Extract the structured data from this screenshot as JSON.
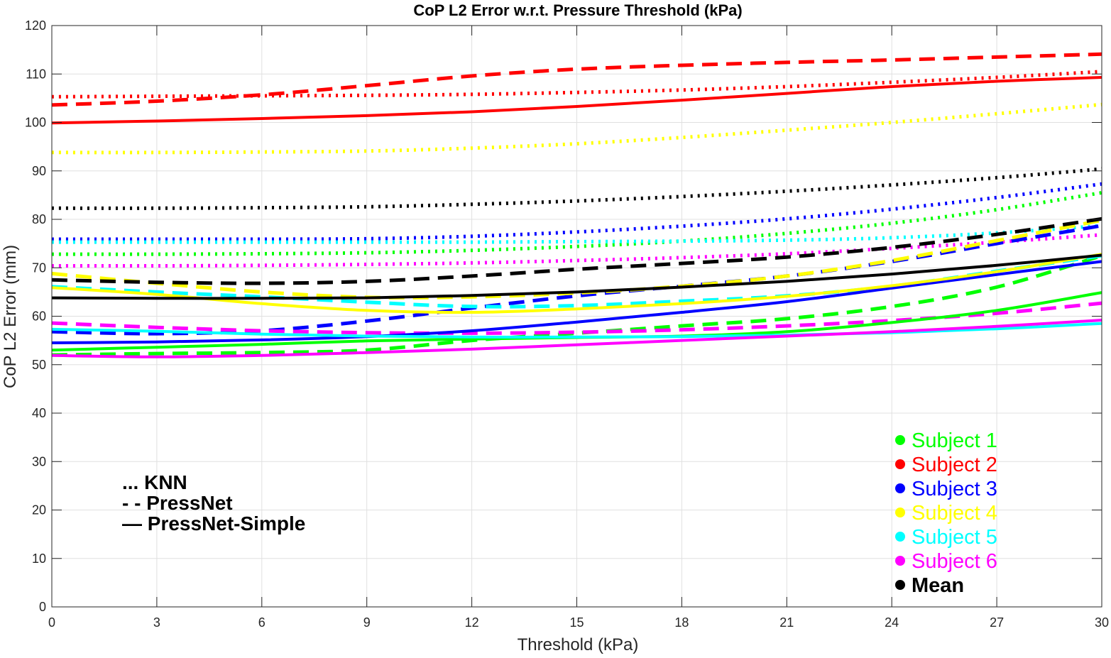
{
  "chart_data": {
    "type": "line",
    "title": "CoP L2 Error w.r.t. Pressure Threshold (kPa)",
    "xlabel": "Threshold (kPa)",
    "ylabel": "CoP L2 Error (mm)",
    "xlim": [
      0,
      30
    ],
    "ylim": [
      0,
      120
    ],
    "xticks": [
      0,
      3,
      6,
      9,
      12,
      15,
      18,
      21,
      24,
      27,
      30
    ],
    "yticks": [
      0,
      10,
      20,
      30,
      40,
      50,
      60,
      70,
      80,
      90,
      100,
      110,
      120
    ],
    "grid": true,
    "x": [
      0,
      3,
      6,
      9,
      12,
      15,
      18,
      21,
      24,
      27,
      30
    ],
    "method_legend": {
      "placement": "lower-left",
      "entries": [
        {
          "style": "dotted",
          "marker": "...",
          "label": "KNN"
        },
        {
          "style": "dashed",
          "marker": "- -",
          "label": "PressNet"
        },
        {
          "style": "solid",
          "marker": "—",
          "label": "PressNet-Simple"
        }
      ]
    },
    "subject_legend": {
      "placement": "lower-right",
      "entries": [
        {
          "label": "Subject 1",
          "color": "#00ff00"
        },
        {
          "label": "Subject 2",
          "color": "#ff0000"
        },
        {
          "label": "Subject 3",
          "color": "#0000ff"
        },
        {
          "label": "Subject 4",
          "color": "#ffff00"
        },
        {
          "label": "Subject 5",
          "color": "#00ffff"
        },
        {
          "label": "Subject 6",
          "color": "#ff00ff"
        },
        {
          "label": "Mean",
          "color": "#000000"
        }
      ]
    },
    "series": [
      {
        "subject": "Subject 1",
        "method": "KNN",
        "color": "#00ff00",
        "style": "dotted",
        "values": [
          72.8,
          72.8,
          72.9,
          73.1,
          73.6,
          74.4,
          75.5,
          77.1,
          79.2,
          82.0,
          85.5
        ]
      },
      {
        "subject": "Subject 1",
        "method": "PressNet",
        "color": "#00ff00",
        "style": "dashed",
        "values": [
          52.0,
          52.3,
          52.5,
          53.0,
          55.0,
          56.5,
          58.0,
          59.5,
          62.0,
          66.0,
          72.5
        ]
      },
      {
        "subject": "Subject 1",
        "method": "PressNet-Simple",
        "color": "#00ff00",
        "style": "solid",
        "values": [
          53.0,
          53.6,
          54.2,
          54.9,
          55.3,
          55.6,
          55.9,
          56.8,
          58.7,
          61.2,
          64.9
        ]
      },
      {
        "subject": "Subject 2",
        "method": "KNN",
        "color": "#ff0000",
        "style": "dotted",
        "values": [
          105.3,
          105.4,
          105.5,
          105.6,
          105.8,
          106.2,
          106.7,
          107.4,
          108.3,
          109.3,
          110.5
        ]
      },
      {
        "subject": "Subject 2",
        "method": "PressNet",
        "color": "#ff0000",
        "style": "dashed",
        "values": [
          103.6,
          104.4,
          105.7,
          107.6,
          109.6,
          111.0,
          111.8,
          112.4,
          112.9,
          113.5,
          114.1
        ]
      },
      {
        "subject": "Subject 2",
        "method": "PressNet-Simple",
        "color": "#ff0000",
        "style": "solid",
        "values": [
          99.9,
          100.3,
          100.8,
          101.4,
          102.2,
          103.3,
          104.6,
          106.0,
          107.4,
          108.5,
          109.3
        ]
      },
      {
        "subject": "Subject 3",
        "method": "KNN",
        "color": "#0000ff",
        "style": "dotted",
        "values": [
          75.9,
          75.9,
          75.9,
          76.0,
          76.5,
          77.4,
          78.6,
          80.1,
          82.1,
          84.5,
          87.3
        ]
      },
      {
        "subject": "Subject 3",
        "method": "PressNet",
        "color": "#0000ff",
        "style": "dashed",
        "values": [
          56.8,
          56.4,
          57.0,
          59.0,
          61.7,
          64.2,
          66.2,
          68.3,
          71.3,
          75.0,
          78.7
        ]
      },
      {
        "subject": "Subject 3",
        "method": "PressNet-Simple",
        "color": "#0000ff",
        "style": "solid",
        "values": [
          54.5,
          54.7,
          55.1,
          55.8,
          57.0,
          58.8,
          60.8,
          63.0,
          65.8,
          68.6,
          71.3
        ]
      },
      {
        "subject": "Subject 4",
        "method": "KNN",
        "color": "#ffff00",
        "style": "dotted",
        "values": [
          93.8,
          93.8,
          93.9,
          94.1,
          94.7,
          95.6,
          96.9,
          98.4,
          100.0,
          101.8,
          103.7
        ]
      },
      {
        "subject": "Subject 4",
        "method": "PressNet",
        "color": "#ffff00",
        "style": "dashed",
        "values": [
          68.8,
          66.8,
          65.0,
          63.9,
          64.0,
          64.8,
          66.2,
          68.3,
          71.5,
          75.6,
          79.8
        ]
      },
      {
        "subject": "Subject 4",
        "method": "PressNet-Simple",
        "color": "#ffff00",
        "style": "solid",
        "values": [
          65.9,
          64.5,
          62.6,
          61.2,
          60.8,
          61.5,
          62.6,
          64.1,
          66.3,
          69.2,
          72.8
        ]
      },
      {
        "subject": "Subject 5",
        "method": "KNN",
        "color": "#00ffff",
        "style": "dotted",
        "values": [
          75.3,
          75.3,
          75.3,
          75.3,
          75.3,
          75.4,
          75.5,
          75.7,
          76.2,
          77.2,
          78.7
        ]
      },
      {
        "subject": "Subject 5",
        "method": "PressNet",
        "color": "#00ffff",
        "style": "dashed",
        "values": [
          66.1,
          65.0,
          64.0,
          62.9,
          62.0,
          62.2,
          63.1,
          64.2,
          66.2,
          69.3,
          72.5
        ]
      },
      {
        "subject": "Subject 5",
        "method": "PressNet-Simple",
        "color": "#00ffff",
        "style": "solid",
        "values": [
          57.3,
          56.9,
          56.3,
          55.9,
          55.7,
          55.7,
          55.8,
          56.1,
          56.6,
          57.4,
          58.5
        ]
      },
      {
        "subject": "Subject 6",
        "method": "KNN",
        "color": "#ff00ff",
        "style": "dotted",
        "values": [
          70.4,
          70.4,
          70.5,
          70.7,
          71.0,
          71.5,
          72.1,
          72.9,
          74.0,
          75.3,
          76.8
        ]
      },
      {
        "subject": "Subject 6",
        "method": "PressNet",
        "color": "#ff00ff",
        "style": "dashed",
        "values": [
          58.6,
          57.7,
          57.0,
          56.6,
          56.5,
          56.7,
          57.2,
          58.0,
          59.1,
          60.6,
          62.7
        ]
      },
      {
        "subject": "Subject 6",
        "method": "PressNet-Simple",
        "color": "#ff00ff",
        "style": "solid",
        "values": [
          51.9,
          51.6,
          51.9,
          52.5,
          53.2,
          54.1,
          55.0,
          55.9,
          56.8,
          57.9,
          59.2
        ]
      },
      {
        "subject": "Mean",
        "method": "KNN",
        "color": "#000000",
        "style": "dotted",
        "values": [
          82.3,
          82.3,
          82.4,
          82.6,
          83.1,
          83.8,
          84.7,
          85.8,
          87.1,
          88.6,
          90.4
        ]
      },
      {
        "subject": "Mean",
        "method": "PressNet",
        "color": "#000000",
        "style": "dashed",
        "values": [
          67.5,
          67.0,
          66.8,
          67.2,
          68.3,
          69.7,
          70.9,
          72.2,
          74.2,
          76.9,
          80.1
        ]
      },
      {
        "subject": "Mean",
        "method": "PressNet-Simple",
        "color": "#000000",
        "style": "solid",
        "values": [
          63.8,
          63.7,
          63.7,
          63.8,
          64.3,
          65.0,
          66.0,
          67.2,
          68.7,
          70.5,
          72.6
        ]
      }
    ]
  }
}
